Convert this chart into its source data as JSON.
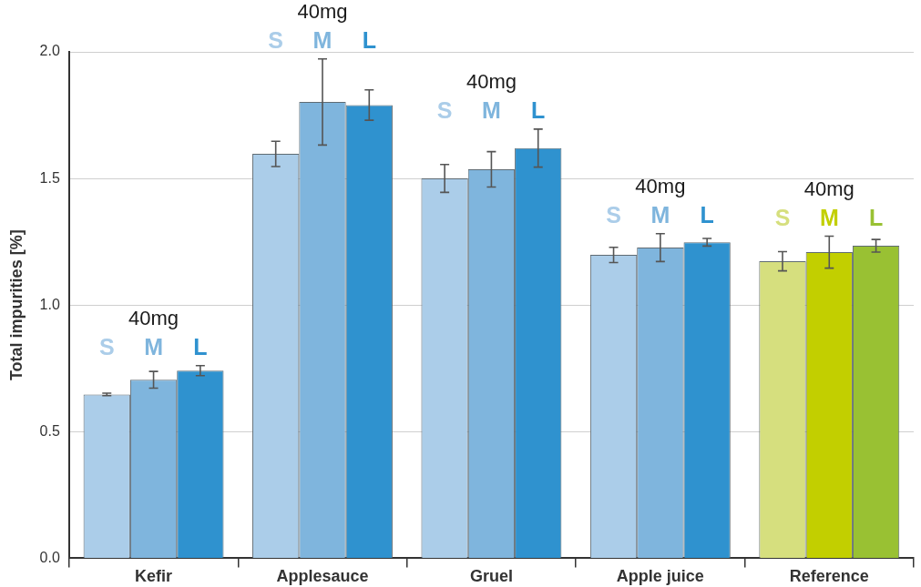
{
  "chart_data": {
    "type": "bar",
    "ylabel": "Total impurities [%]",
    "categories": [
      "Kefir",
      "Applesauce",
      "Gruel",
      "Apple juice",
      "Reference"
    ],
    "series": [
      {
        "name": "S",
        "colors": [
          "#abcde9",
          "#abcde9",
          "#abcde9",
          "#abcde9",
          "#d6df7e"
        ],
        "values": [
          0.647,
          1.597,
          1.5,
          1.198,
          1.173
        ],
        "errors": [
          0.005,
          0.05,
          0.055,
          0.03,
          0.038
        ]
      },
      {
        "name": "M",
        "colors": [
          "#7fb5dd",
          "#7fb5dd",
          "#7fb5dd",
          "#7fb5dd",
          "#c2cf00"
        ],
        "values": [
          0.705,
          1.802,
          1.536,
          1.227,
          1.209
        ],
        "errors": [
          0.033,
          0.17,
          0.07,
          0.055,
          0.063
        ]
      },
      {
        "name": "L",
        "colors": [
          "#2f92cf",
          "#2f92cf",
          "#2f92cf",
          "#2f92cf",
          "#99c133"
        ],
        "values": [
          0.741,
          1.79,
          1.62,
          1.248,
          1.234
        ],
        "errors": [
          0.02,
          0.06,
          0.075,
          0.015,
          0.025
        ]
      }
    ],
    "annotations": [
      "40mg",
      "40mg",
      "40mg",
      "40mg",
      "40mg"
    ],
    "ylim": [
      0,
      2.0
    ],
    "yticks": [
      {
        "value": 0,
        "label": "0.0"
      },
      {
        "value": 0.5,
        "label": "0.5"
      },
      {
        "value": 1.0,
        "label": "1.0"
      },
      {
        "value": 1.5,
        "label": "1.5"
      },
      {
        "value": 2.0,
        "label": "2.0"
      }
    ],
    "grid": "y",
    "legend": false
  }
}
